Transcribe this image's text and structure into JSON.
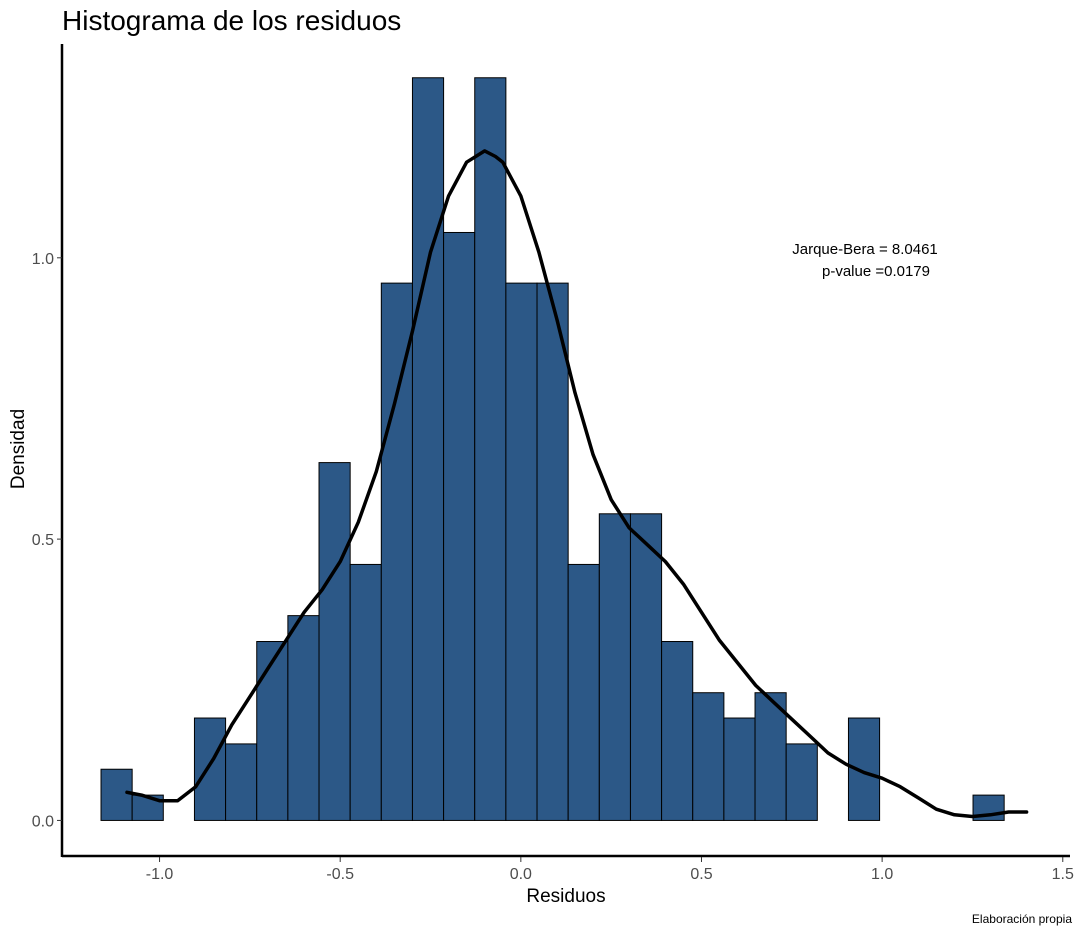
{
  "chart_data": {
    "type": "bar",
    "title": "Histograma de los residuos",
    "xlabel": "Residuos",
    "ylabel": "Densidad",
    "caption": "Elaboración propia",
    "annotation": [
      "Jarque-Bera = 8.0461",
      "p-value =0.0179"
    ],
    "bar_color": "#2c5887",
    "bar_border": "#000000",
    "curve_color": "#000000",
    "grid": false,
    "xlim": [
      -1.27,
      1.52
    ],
    "ylim": [
      -0.065,
      1.38
    ],
    "x_ticks": [
      -1.0,
      -0.5,
      0.0,
      0.5,
      1.0,
      1.5
    ],
    "x_tick_labels": [
      "-1.0",
      "-0.5",
      "0.0",
      "0.5",
      "1.0",
      "1.5"
    ],
    "y_ticks": [
      0.0,
      0.5,
      1.0
    ],
    "y_tick_labels": [
      "0.0",
      "0.5",
      "1.0"
    ],
    "bins": {
      "start": -1.162,
      "width": 0.0862,
      "values": [
        0.091,
        0.045,
        0.0,
        0.182,
        0.136,
        0.318,
        0.364,
        0.636,
        0.455,
        0.955,
        1.32,
        1.045,
        1.32,
        0.955,
        0.955,
        0.455,
        0.545,
        0.545,
        0.318,
        0.227,
        0.182,
        0.227,
        0.136,
        0.0,
        0.182,
        0.0,
        0.0,
        0.0,
        0.045
      ]
    },
    "density_curve": {
      "x": [
        -1.09,
        -1.05,
        -1.0,
        -0.95,
        -0.9,
        -0.85,
        -0.8,
        -0.75,
        -0.7,
        -0.65,
        -0.6,
        -0.55,
        -0.5,
        -0.45,
        -0.4,
        -0.35,
        -0.3,
        -0.25,
        -0.2,
        -0.15,
        -0.1,
        -0.07,
        -0.05,
        0.0,
        0.05,
        0.1,
        0.15,
        0.2,
        0.25,
        0.3,
        0.35,
        0.4,
        0.45,
        0.5,
        0.55,
        0.6,
        0.65,
        0.7,
        0.75,
        0.8,
        0.85,
        0.9,
        0.95,
        1.0,
        1.05,
        1.1,
        1.15,
        1.2,
        1.25,
        1.3,
        1.35,
        1.4
      ],
      "y": [
        0.05,
        0.045,
        0.035,
        0.035,
        0.06,
        0.11,
        0.17,
        0.22,
        0.27,
        0.32,
        0.37,
        0.41,
        0.46,
        0.53,
        0.62,
        0.74,
        0.87,
        1.01,
        1.11,
        1.17,
        1.19,
        1.18,
        1.17,
        1.11,
        1.01,
        0.89,
        0.76,
        0.65,
        0.57,
        0.52,
        0.49,
        0.46,
        0.42,
        0.37,
        0.32,
        0.28,
        0.24,
        0.21,
        0.18,
        0.15,
        0.12,
        0.1,
        0.085,
        0.075,
        0.06,
        0.04,
        0.02,
        0.01,
        0.007,
        0.01,
        0.015,
        0.015
      ]
    }
  }
}
